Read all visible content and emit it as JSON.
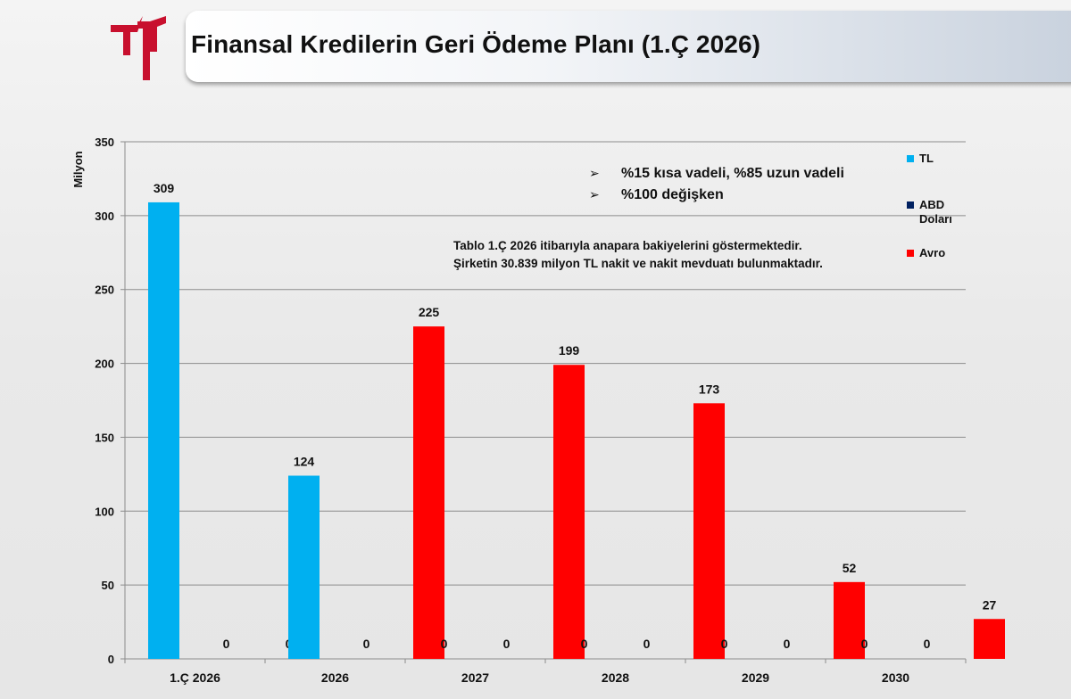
{
  "header": {
    "title": "Finansal Kredilerin Geri Ödeme Planı (1.Ç 2026)",
    "logo": "red-logo-icon"
  },
  "chart_data": {
    "type": "bar",
    "ylabel": "Milyon",
    "xlabel": "",
    "ylim": [
      0,
      350
    ],
    "yticks": [
      0,
      50,
      100,
      150,
      200,
      250,
      300,
      350
    ],
    "grid": true,
    "legend_position": "right",
    "categories": [
      "1.Ç 2026",
      "2026",
      "2027",
      "2028",
      "2029",
      "2030"
    ],
    "series": [
      {
        "name": "TL",
        "color": "#00b0f0",
        "values": [
          309,
          124,
          0,
          0,
          0,
          0
        ],
        "labels": [
          "309",
          "124",
          "0",
          "0",
          "0",
          "0"
        ]
      },
      {
        "name": "ABD Doları",
        "color": "#002060",
        "values": [
          0,
          0,
          0,
          0,
          0,
          0
        ],
        "labels": [
          "0",
          "0",
          "0",
          "0",
          "0",
          "0"
        ]
      },
      {
        "name": "Avro",
        "color": "#ff0000",
        "values": [
          0,
          225,
          199,
          173,
          52,
          27
        ],
        "labels": [
          "0",
          "225",
          "199",
          "173",
          "52",
          "27"
        ]
      }
    ]
  },
  "annotations": {
    "bullet_marker": "➢",
    "bullets": [
      "%15 kısa vadeli, %85 uzun vadeli",
      "%100 değişken"
    ],
    "note_lines": [
      "Tablo 1.Ç 2026 itibarıyla anapara bakiyelerini göstermektedir.",
      "Şirketin 30.839 milyon TL nakit ve nakit mevduatı bulunmaktadır."
    ]
  }
}
